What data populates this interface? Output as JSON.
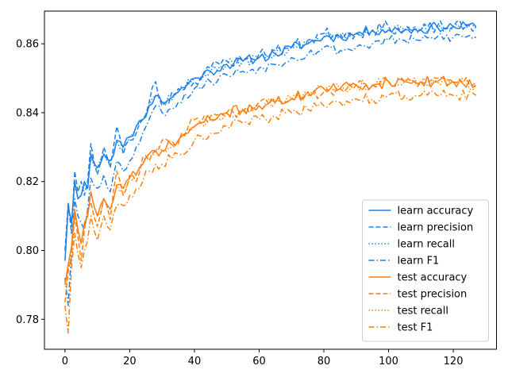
{
  "chart_data": {
    "type": "line",
    "title": "",
    "xlabel": "",
    "ylabel": "",
    "xlim": [
      -6.35,
      133.35
    ],
    "ylim": [
      0.7713,
      0.8695
    ],
    "xticks": [
      0,
      20,
      40,
      60,
      80,
      100,
      120
    ],
    "yticks": [
      0.78,
      0.8,
      0.82,
      0.84,
      0.86
    ],
    "ytick_labels": [
      "0.78",
      "0.80",
      "0.82",
      "0.84",
      "0.86"
    ],
    "grid": false,
    "legend_position": "lower-right",
    "colors": {
      "learn": "#1a80e8",
      "test": "#ff7f0e"
    },
    "x_range": [
      0,
      127
    ],
    "series": [
      {
        "name": "learn accuracy",
        "group": "learn",
        "linestyle": "solid",
        "key_x": [
          0,
          1,
          2,
          3,
          4,
          5,
          6,
          7,
          8,
          10,
          12,
          14,
          16,
          18,
          20,
          22,
          24,
          26,
          28,
          30,
          35,
          40,
          45,
          50,
          55,
          60,
          65,
          70,
          75,
          80,
          85,
          90,
          95,
          100,
          105,
          110,
          115,
          120,
          127
        ],
        "key_y": [
          0.797,
          0.813,
          0.808,
          0.82,
          0.815,
          0.816,
          0.82,
          0.818,
          0.828,
          0.824,
          0.828,
          0.826,
          0.832,
          0.83,
          0.833,
          0.836,
          0.838,
          0.842,
          0.845,
          0.843,
          0.846,
          0.85,
          0.852,
          0.854,
          0.855,
          0.856,
          0.857,
          0.859,
          0.86,
          0.862,
          0.862,
          0.863,
          0.864,
          0.864,
          0.864,
          0.864,
          0.865,
          0.865,
          0.865
        ],
        "noise": 0.0015,
        "seed": 11
      },
      {
        "name": "learn precision",
        "group": "learn",
        "linestyle": "dashed",
        "key_x": [
          0,
          1,
          2,
          3,
          4,
          5,
          6,
          7,
          8,
          10,
          12,
          14,
          16,
          18,
          20,
          22,
          24,
          26,
          28,
          30,
          35,
          40,
          45,
          50,
          55,
          60,
          65,
          70,
          75,
          80,
          85,
          90,
          95,
          100,
          105,
          110,
          115,
          120,
          127
        ],
        "key_y": [
          0.8,
          0.814,
          0.805,
          0.823,
          0.817,
          0.82,
          0.816,
          0.82,
          0.831,
          0.822,
          0.83,
          0.824,
          0.836,
          0.828,
          0.832,
          0.834,
          0.838,
          0.843,
          0.849,
          0.842,
          0.847,
          0.849,
          0.853,
          0.855,
          0.855,
          0.857,
          0.858,
          0.859,
          0.861,
          0.863,
          0.863,
          0.863,
          0.864,
          0.865,
          0.864,
          0.864,
          0.865,
          0.865,
          0.865
        ],
        "noise": 0.0018,
        "seed": 23
      },
      {
        "name": "learn recall",
        "group": "learn",
        "linestyle": "dotted",
        "key_x": [
          0,
          1,
          2,
          3,
          4,
          5,
          6,
          7,
          8,
          10,
          12,
          14,
          16,
          18,
          20,
          22,
          24,
          26,
          28,
          30,
          35,
          40,
          45,
          50,
          55,
          60,
          65,
          70,
          75,
          80,
          85,
          90,
          95,
          100,
          105,
          110,
          115,
          120,
          127
        ],
        "key_y": [
          0.797,
          0.812,
          0.808,
          0.819,
          0.815,
          0.816,
          0.819,
          0.818,
          0.827,
          0.824,
          0.828,
          0.826,
          0.832,
          0.83,
          0.833,
          0.836,
          0.838,
          0.842,
          0.845,
          0.843,
          0.846,
          0.85,
          0.852,
          0.854,
          0.855,
          0.856,
          0.857,
          0.859,
          0.86,
          0.862,
          0.862,
          0.863,
          0.864,
          0.864,
          0.864,
          0.864,
          0.865,
          0.865,
          0.865
        ],
        "noise": 0.0015,
        "seed": 37
      },
      {
        "name": "learn F1",
        "group": "learn",
        "linestyle": "dashdot",
        "key_x": [
          0,
          1,
          2,
          3,
          4,
          5,
          6,
          7,
          8,
          10,
          12,
          14,
          16,
          18,
          20,
          22,
          24,
          26,
          28,
          30,
          35,
          40,
          45,
          50,
          55,
          60,
          65,
          70,
          75,
          80,
          85,
          90,
          95,
          100,
          105,
          110,
          115,
          120,
          127
        ],
        "key_y": [
          0.792,
          0.784,
          0.8,
          0.815,
          0.81,
          0.808,
          0.806,
          0.812,
          0.821,
          0.818,
          0.822,
          0.817,
          0.826,
          0.823,
          0.826,
          0.83,
          0.834,
          0.838,
          0.842,
          0.84,
          0.843,
          0.847,
          0.849,
          0.851,
          0.852,
          0.853,
          0.854,
          0.856,
          0.857,
          0.859,
          0.858,
          0.859,
          0.86,
          0.861,
          0.861,
          0.861,
          0.862,
          0.862,
          0.862
        ],
        "noise": 0.0015,
        "seed": 53
      },
      {
        "name": "test accuracy",
        "group": "test",
        "linestyle": "solid",
        "key_x": [
          0,
          1,
          2,
          3,
          4,
          5,
          6,
          7,
          8,
          10,
          12,
          14,
          16,
          18,
          20,
          22,
          24,
          26,
          28,
          30,
          35,
          40,
          45,
          50,
          55,
          60,
          65,
          70,
          75,
          80,
          85,
          90,
          95,
          100,
          105,
          110,
          115,
          120,
          127
        ],
        "key_y": [
          0.79,
          0.796,
          0.801,
          0.812,
          0.806,
          0.802,
          0.808,
          0.81,
          0.817,
          0.81,
          0.815,
          0.812,
          0.819,
          0.818,
          0.821,
          0.822,
          0.825,
          0.828,
          0.829,
          0.829,
          0.832,
          0.836,
          0.838,
          0.84,
          0.841,
          0.842,
          0.843,
          0.844,
          0.846,
          0.847,
          0.847,
          0.848,
          0.848,
          0.849,
          0.849,
          0.849,
          0.849,
          0.849,
          0.848
        ],
        "noise": 0.0016,
        "seed": 71
      },
      {
        "name": "test precision",
        "group": "test",
        "linestyle": "dashed",
        "key_x": [
          0,
          1,
          2,
          3,
          4,
          5,
          6,
          7,
          8,
          10,
          12,
          14,
          16,
          18,
          20,
          22,
          24,
          26,
          28,
          30,
          35,
          40,
          45,
          50,
          55,
          60,
          65,
          70,
          75,
          80,
          85,
          90,
          95,
          100,
          105,
          110,
          115,
          120,
          127
        ],
        "key_y": [
          0.785,
          0.794,
          0.798,
          0.81,
          0.804,
          0.797,
          0.806,
          0.812,
          0.814,
          0.807,
          0.815,
          0.809,
          0.823,
          0.816,
          0.822,
          0.82,
          0.827,
          0.826,
          0.829,
          0.832,
          0.831,
          0.838,
          0.839,
          0.84,
          0.84,
          0.843,
          0.843,
          0.844,
          0.845,
          0.846,
          0.847,
          0.848,
          0.848,
          0.849,
          0.849,
          0.849,
          0.85,
          0.849,
          0.849
        ],
        "noise": 0.0016,
        "seed": 89
      },
      {
        "name": "test recall",
        "group": "test",
        "linestyle": "dotted",
        "key_x": [
          0,
          1,
          2,
          3,
          4,
          5,
          6,
          7,
          8,
          10,
          12,
          14,
          16,
          18,
          20,
          22,
          24,
          26,
          28,
          30,
          35,
          40,
          45,
          50,
          55,
          60,
          65,
          70,
          75,
          80,
          85,
          90,
          95,
          100,
          105,
          110,
          115,
          120,
          127
        ],
        "key_y": [
          0.79,
          0.795,
          0.801,
          0.811,
          0.806,
          0.802,
          0.808,
          0.81,
          0.817,
          0.81,
          0.815,
          0.812,
          0.819,
          0.818,
          0.821,
          0.822,
          0.825,
          0.828,
          0.829,
          0.829,
          0.832,
          0.836,
          0.838,
          0.84,
          0.841,
          0.842,
          0.843,
          0.844,
          0.846,
          0.847,
          0.847,
          0.848,
          0.848,
          0.849,
          0.849,
          0.849,
          0.849,
          0.849,
          0.848
        ],
        "noise": 0.0016,
        "seed": 97
      },
      {
        "name": "test F1",
        "group": "test",
        "linestyle": "dashdot",
        "key_x": [
          0,
          1,
          2,
          3,
          4,
          5,
          6,
          7,
          8,
          10,
          12,
          14,
          16,
          18,
          20,
          22,
          24,
          26,
          28,
          30,
          35,
          40,
          45,
          50,
          55,
          60,
          65,
          70,
          75,
          80,
          85,
          90,
          95,
          100,
          105,
          110,
          115,
          120,
          127
        ],
        "key_y": [
          0.784,
          0.776,
          0.795,
          0.805,
          0.799,
          0.795,
          0.8,
          0.803,
          0.81,
          0.803,
          0.81,
          0.806,
          0.813,
          0.813,
          0.816,
          0.818,
          0.82,
          0.823,
          0.825,
          0.825,
          0.828,
          0.832,
          0.834,
          0.836,
          0.837,
          0.838,
          0.839,
          0.84,
          0.841,
          0.842,
          0.843,
          0.844,
          0.844,
          0.845,
          0.845,
          0.845,
          0.845,
          0.845,
          0.845
        ],
        "noise": 0.0016,
        "seed": 113
      }
    ]
  }
}
